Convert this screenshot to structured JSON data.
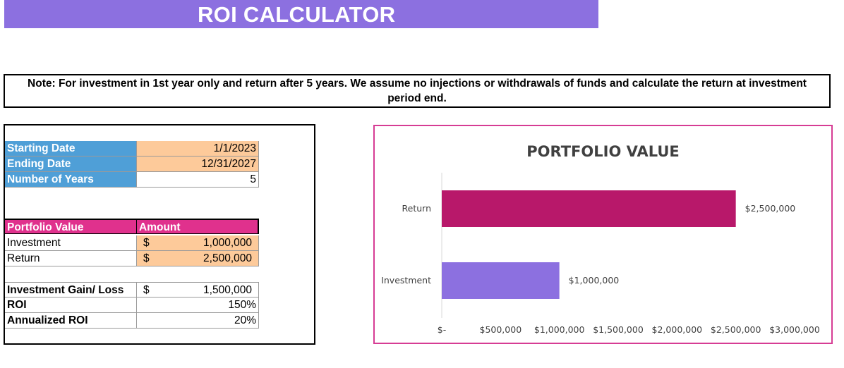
{
  "title": "ROI CALCULATOR",
  "note": "Note: For investment in 1st year only and return after 5 years. We assume no injections or withdrawals of funds and calculate the return at investment period end.",
  "dates_table": [
    {
      "label": "Starting Date",
      "value": "1/1/2023"
    },
    {
      "label": "Ending Date",
      "value": "12/31/2027"
    },
    {
      "label": "Number of Years",
      "value": "5"
    }
  ],
  "portfolio_table": {
    "header_label": "Portfolio Value",
    "header_amount": "Amount",
    "rows": [
      {
        "label": "Investment",
        "currency": "$",
        "value": "1,000,000"
      },
      {
        "label": "Return",
        "currency": "$",
        "value": "2,500,000"
      }
    ]
  },
  "results_table": [
    {
      "label": "Investment Gain/ Loss",
      "currency": "$",
      "value": "1,500,000"
    },
    {
      "label": "ROI",
      "currency": "",
      "value": "150%"
    },
    {
      "label": "Annualized ROI",
      "currency": "",
      "value": "20%"
    }
  ],
  "colors": {
    "title_bar": "#8c70e0",
    "label_blue": "#4f9fd7",
    "input_peach": "#fdca9a",
    "header_pink": "#e0318d",
    "return_bar": "#b8186a",
    "investment_bar": "#8c70e0",
    "chart_border": "#d63c94"
  },
  "chart_data": {
    "type": "bar",
    "orientation": "horizontal",
    "title": "PORTFOLIO VALUE",
    "categories": [
      "Investment",
      "Return"
    ],
    "values": [
      1000000,
      2500000
    ],
    "data_labels": [
      "$1,000,000",
      "$2,500,000"
    ],
    "xlim": [
      0,
      3000000
    ],
    "x_ticks": [
      "$-",
      "$500,000",
      "$1,000,000",
      "$1,500,000",
      "$2,000,000",
      "$2,500,000",
      "$3,000,000"
    ],
    "grid": false,
    "legend": "none"
  }
}
